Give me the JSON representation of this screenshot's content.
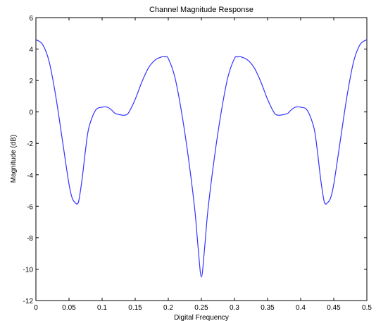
{
  "chart_data": {
    "type": "line",
    "title": "Channel Magnitude Response",
    "xlabel": "Digital Frequency",
    "ylabel": "Magnitude (dB)",
    "xlim": [
      0,
      0.5
    ],
    "ylim": [
      -12,
      6
    ],
    "xticks": [
      0,
      0.05,
      0.1,
      0.15,
      0.2,
      0.25,
      0.3,
      0.35,
      0.4,
      0.45,
      0.5
    ],
    "xtick_labels": [
      "0",
      "0.05",
      "0.1",
      "0.15",
      "0.2",
      "0.25",
      "0.3",
      "0.35",
      "0.4",
      "0.45",
      "0.5"
    ],
    "yticks": [
      -12,
      -10,
      -8,
      -6,
      -4,
      -2,
      0,
      2,
      4,
      6
    ],
    "ytick_labels": [
      "-12",
      "-10",
      "-8",
      "-6",
      "-4",
      "-2",
      "0",
      "2",
      "4",
      "6"
    ],
    "grid": false,
    "line_color": "#3333ff",
    "series": [
      {
        "x": [
          0,
          0.01,
          0.02,
          0.03,
          0.04,
          0.05,
          0.055,
          0.06,
          0.0625,
          0.065,
          0.07,
          0.075,
          0.08,
          0.09,
          0.1,
          0.108,
          0.115,
          0.12,
          0.13,
          0.135,
          0.14,
          0.15,
          0.16,
          0.17,
          0.18,
          0.19,
          0.195,
          0.2,
          0.21,
          0.22,
          0.23,
          0.24,
          0.245,
          0.25,
          0.255,
          0.26,
          0.27,
          0.28,
          0.29,
          0.3,
          0.305,
          0.31,
          0.32,
          0.33,
          0.34,
          0.35,
          0.36,
          0.365,
          0.37,
          0.38,
          0.385,
          0.392,
          0.4,
          0.41,
          0.42,
          0.425,
          0.43,
          0.435,
          0.4375,
          0.44,
          0.445,
          0.45,
          0.46,
          0.47,
          0.48,
          0.49,
          0.5
        ],
        "y": [
          4.6,
          4.3,
          3.2,
          1.0,
          -1.8,
          -4.6,
          -5.5,
          -5.8,
          -5.85,
          -5.6,
          -4.2,
          -2.4,
          -1.0,
          0.1,
          0.3,
          0.3,
          0.1,
          -0.1,
          -0.2,
          -0.2,
          -0.05,
          0.8,
          1.9,
          2.8,
          3.3,
          3.5,
          3.5,
          3.4,
          2.2,
          0.0,
          -2.8,
          -6.2,
          -8.6,
          -10.5,
          -8.6,
          -6.2,
          -2.8,
          0.0,
          2.2,
          3.4,
          3.5,
          3.5,
          3.3,
          2.8,
          1.9,
          0.8,
          -0.05,
          -0.2,
          -0.2,
          -0.1,
          0.1,
          0.3,
          0.3,
          0.1,
          -1.0,
          -2.4,
          -4.2,
          -5.6,
          -5.85,
          -5.8,
          -5.5,
          -4.6,
          -1.8,
          1.0,
          3.2,
          4.3,
          4.6
        ]
      }
    ]
  }
}
